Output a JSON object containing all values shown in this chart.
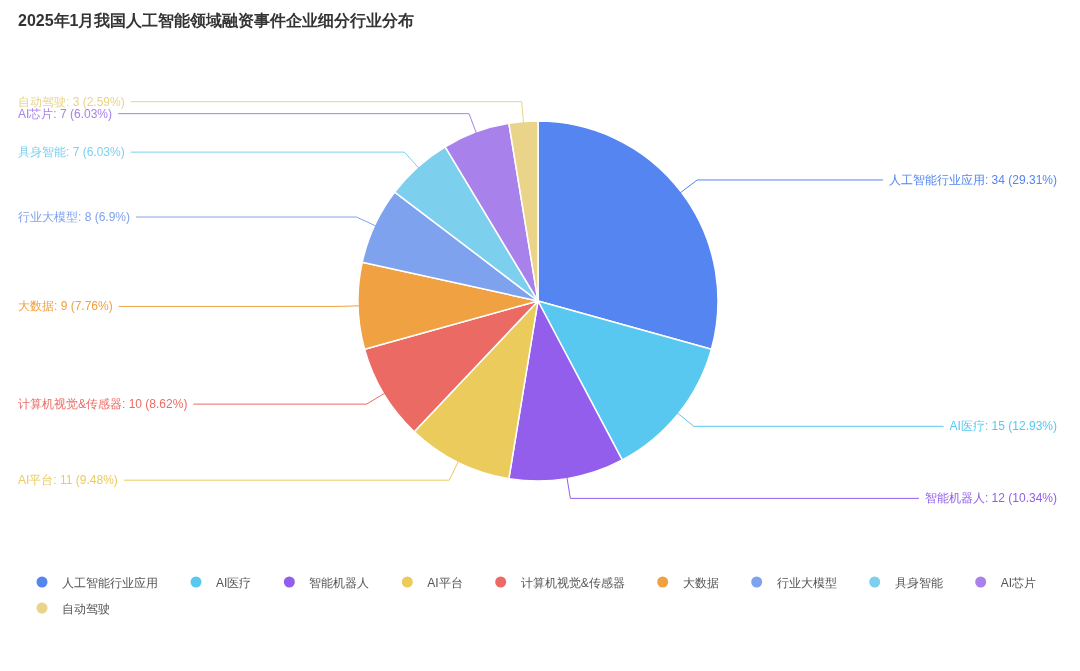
{
  "chart_data": {
    "type": "pie",
    "title": "2025年1月我国人工智能领域融资事件企业细分行业分布",
    "categories": [
      "人工智能行业应用",
      "AI医疗",
      "智能机器人",
      "AI平台",
      "计算机视觉&传感器",
      "大数据",
      "行业大模型",
      "具身智能",
      "AI芯片",
      "自动驾驶"
    ],
    "values": [
      34,
      15,
      12,
      11,
      10,
      9,
      8,
      7,
      7,
      3
    ],
    "colors": [
      "#5585f0",
      "#58c8f0",
      "#925eeb",
      "#ebcb5b",
      "#eb6b64",
      "#f0a142",
      "#7fa2ee",
      "#7dcfee",
      "#a881ea",
      "#e9d48a"
    ],
    "value_labels": [
      "人工智能行业应用: 34 (29.31%)",
      "AI医疗: 15 (12.93%)",
      "智能机器人: 12 (10.34%)",
      "AI平台: 11 (9.48%)",
      "计算机视觉&传感器: 10 (8.62%)",
      "大数据: 9 (7.76%)",
      "行业大模型: 8 (6.9%)",
      "具身智能: 7 (6.03%)",
      "AI芯片: 7 (6.03%)",
      "自动驾驶: 3 (2.59%)"
    ],
    "legend": "bottom"
  }
}
